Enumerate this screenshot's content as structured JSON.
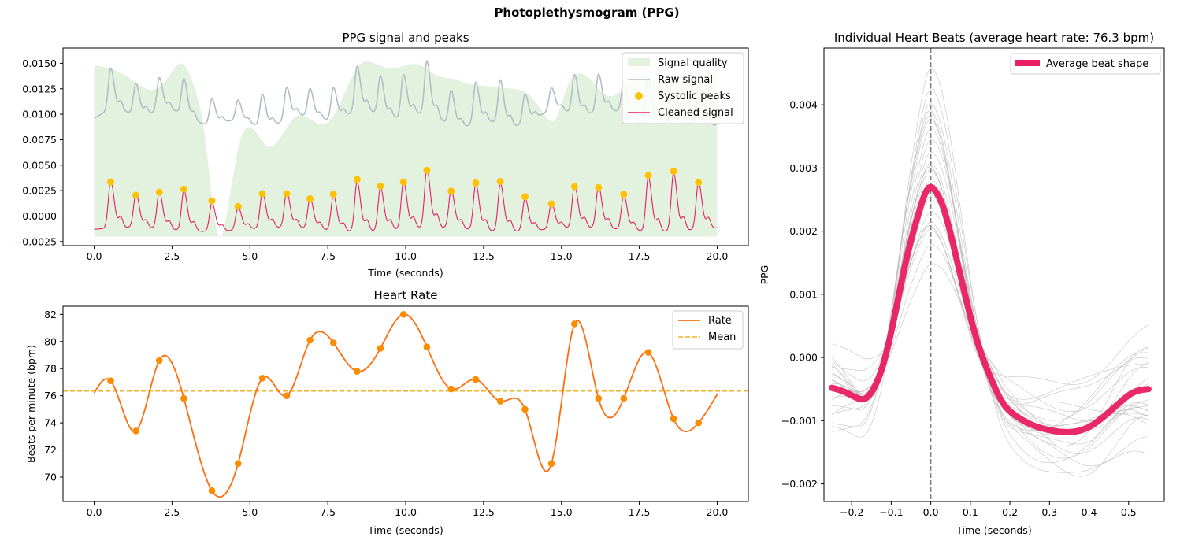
{
  "figure": {
    "suptitle": "Photoplethysmogram (PPG)"
  },
  "colors": {
    "quality": "#e3f2df",
    "raw": "#b0bec5",
    "peaks": "#ffc107",
    "cleaned": "#e91e63",
    "rate": "#ff6d0f",
    "rate_points": "#fb8c00",
    "mean": "#f0b428",
    "beats": "#bdbdbd",
    "vline": "#808080"
  },
  "chart_data": [
    {
      "id": "ppg",
      "type": "line",
      "title": "PPG signal and peaks",
      "xlabel": "Time (seconds)",
      "ylabel": "",
      "xlim": [
        -1.0,
        21.0
      ],
      "ylim": [
        -0.0029,
        0.0165
      ],
      "xticks": [
        0,
        2.5,
        5,
        7.5,
        10,
        12.5,
        15,
        17.5,
        20
      ],
      "xtick_labels": [
        "0.0",
        "2.5",
        "5.0",
        "7.5",
        "10.0",
        "12.5",
        "15.0",
        "17.5",
        "20.0"
      ],
      "yticks": [
        -0.0025,
        0,
        0.0025,
        0.005,
        0.0075,
        0.01,
        0.0125,
        0.015
      ],
      "ytick_labels": [
        "−0.0025",
        "0.0000",
        "0.0025",
        "0.0050",
        "0.0075",
        "0.0100",
        "0.0125",
        "0.0150"
      ],
      "legend_position": "top-right",
      "legend": [
        "Signal quality",
        "Raw signal",
        "Systolic peaks",
        "Cleaned signal"
      ],
      "peaks": {
        "x": [
          0.53,
          1.34,
          2.09,
          2.88,
          3.78,
          4.62,
          5.4,
          6.18,
          6.93,
          7.68,
          8.44,
          9.19,
          9.93,
          10.68,
          11.46,
          12.25,
          13.04,
          13.83,
          14.68,
          15.42,
          16.19,
          17.0,
          17.79,
          18.6,
          19.4
        ],
        "y": [
          0.00335,
          0.00205,
          0.00235,
          0.00265,
          0.0015,
          0.00095,
          0.0022,
          0.0022,
          0.0017,
          0.00215,
          0.0036,
          0.00295,
          0.00335,
          0.0045,
          0.00245,
          0.00325,
          0.0034,
          0.0019,
          0.0012,
          0.0029,
          0.0028,
          0.00215,
          0.004,
          0.0044,
          0.0033
        ]
      },
      "quality": {
        "x": [
          0,
          0.5,
          1,
          1.5,
          2,
          2.5,
          2.8,
          3.2,
          3.5,
          3.7,
          4.0,
          4.3,
          4.7,
          5.2,
          5.6,
          6.0,
          6.5,
          7.0,
          7.5,
          8.0,
          8.5,
          9.0,
          9.5,
          10.0,
          10.5,
          11.0,
          11.5,
          12.0,
          12.5,
          13.0,
          13.5,
          14.0,
          14.5,
          14.8,
          15.2,
          15.6,
          16.0,
          16.5,
          17.0,
          17.5,
          18.0,
          18.5,
          19.0,
          19.5,
          20.0
        ],
        "y": [
          0.0148,
          0.0145,
          0.0138,
          0.0128,
          0.0125,
          0.0142,
          0.015,
          0.0128,
          0.009,
          0.004,
          -0.002,
          0.001,
          0.0075,
          0.0082,
          0.0068,
          0.0078,
          0.0098,
          0.0094,
          0.0092,
          0.0118,
          0.0148,
          0.015,
          0.0145,
          0.0148,
          0.0148,
          0.0138,
          0.0135,
          0.013,
          0.0128,
          0.0126,
          0.0125,
          0.0118,
          0.0098,
          0.0095,
          0.0128,
          0.014,
          0.0132,
          0.0118,
          0.0125,
          0.0138,
          0.0135,
          0.013,
          0.0133,
          0.014,
          0.0142
        ],
        "baseline": -0.002
      },
      "raw_offset": 0.0105,
      "cleaned_baseline": -0.0013
    },
    {
      "id": "rate",
      "type": "line",
      "title": "Heart Rate",
      "xlabel": "Time (seconds)",
      "ylabel": "Beats per minute (bpm)",
      "xlim": [
        -1.0,
        21.0
      ],
      "ylim": [
        68.2,
        82.6
      ],
      "xticks": [
        0,
        2.5,
        5,
        7.5,
        10,
        12.5,
        15,
        17.5,
        20
      ],
      "xtick_labels": [
        "0.0",
        "2.5",
        "5.0",
        "7.5",
        "10.0",
        "12.5",
        "15.0",
        "17.5",
        "20.0"
      ],
      "yticks": [
        70,
        72,
        74,
        76,
        78,
        80,
        82
      ],
      "ytick_labels": [
        "70",
        "72",
        "74",
        "76",
        "78",
        "80",
        "82"
      ],
      "legend_position": "top-right",
      "legend": [
        "Rate",
        "Mean"
      ],
      "mean": 76.35,
      "points": {
        "x": [
          0.53,
          1.34,
          2.09,
          2.88,
          3.78,
          4.62,
          5.4,
          6.18,
          6.93,
          7.68,
          8.44,
          9.19,
          9.93,
          10.68,
          11.46,
          12.25,
          13.04,
          13.83,
          14.68,
          15.42,
          16.19,
          17.0,
          17.79,
          18.6,
          19.4
        ],
        "y": [
          77.1,
          73.4,
          78.6,
          75.8,
          69.0,
          71.0,
          77.3,
          76.0,
          80.1,
          79.9,
          77.8,
          79.5,
          82.0,
          79.6,
          76.5,
          77.2,
          75.6,
          75.0,
          71.0,
          81.3,
          75.8,
          75.8,
          79.2,
          74.3,
          74.0
        ]
      },
      "start": [
        0.0,
        76.2
      ],
      "end": [
        20.0,
        76.1
      ]
    },
    {
      "id": "beats",
      "type": "line",
      "title": "Individual Heart Beats (average heart rate: 76.3 bpm)",
      "xlabel": "Time (seconds)",
      "ylabel": "PPG",
      "xlim": [
        -0.27,
        0.59
      ],
      "ylim": [
        -0.00228,
        0.0049
      ],
      "xticks": [
        -0.2,
        -0.1,
        0,
        0.1,
        0.2,
        0.3,
        0.4,
        0.5
      ],
      "xtick_labels": [
        "−0.2",
        "−0.1",
        "0.0",
        "0.1",
        "0.2",
        "0.3",
        "0.4",
        "0.5"
      ],
      "yticks": [
        -0.002,
        -0.001,
        0,
        0.001,
        0.002,
        0.003,
        0.004
      ],
      "ytick_labels": [
        "−0.002",
        "−0.001",
        "0.000",
        "0.001",
        "0.002",
        "0.003",
        "0.004"
      ],
      "legend_position": "top-right",
      "legend": [
        "Average beat shape"
      ],
      "average": {
        "x": [
          -0.25,
          -0.22,
          -0.19,
          -0.17,
          -0.15,
          -0.12,
          -0.09,
          -0.06,
          -0.03,
          -0.01,
          0.0,
          0.01,
          0.03,
          0.06,
          0.09,
          0.12,
          0.15,
          0.18,
          0.21,
          0.25,
          0.3,
          0.35,
          0.4,
          0.44,
          0.48,
          0.51,
          0.55
        ],
        "y": [
          -0.00048,
          -0.00054,
          -0.00063,
          -0.00066,
          -0.00055,
          -0.0001,
          0.0007,
          0.0016,
          0.0023,
          0.00265,
          0.0027,
          0.00265,
          0.0024,
          0.0017,
          0.0009,
          0.0002,
          -0.0003,
          -0.0007,
          -0.0009,
          -0.00105,
          -0.00115,
          -0.00118,
          -0.0011,
          -0.00092,
          -0.0007,
          -0.00056,
          -0.0005
        ]
      },
      "beat_scales": [
        0.55,
        0.62,
        0.7,
        0.75,
        0.8,
        0.85,
        0.9,
        0.95,
        1.0,
        1.05,
        1.1,
        1.15,
        1.2,
        1.25,
        1.28,
        1.3,
        1.35,
        1.4,
        1.48,
        1.55,
        1.62,
        1.7
      ]
    }
  ]
}
